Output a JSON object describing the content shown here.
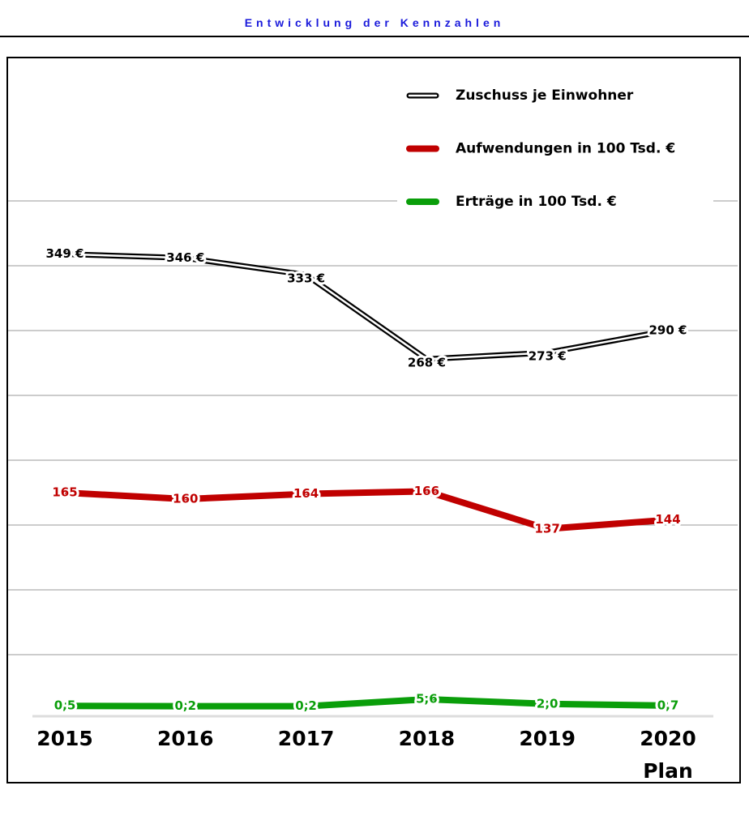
{
  "chart_data": {
    "type": "line",
    "title": "Entwicklung der Kennzahlen",
    "categories": [
      "2015",
      "2016",
      "2017",
      "2018",
      "2019",
      "2020\nPlan"
    ],
    "ylim": [
      0,
      490
    ],
    "grid": true,
    "legend": "top-right",
    "series": [
      {
        "name": "Zuschuss je Einwohner",
        "color": "#000000",
        "values": [
          349,
          346,
          333,
          268,
          273,
          290
        ],
        "value_labels": [
          "349 €",
          "346 €",
          "333 €",
          "268 €",
          "273 €",
          "290 €"
        ]
      },
      {
        "name": "Aufwendungen in 100 Tsd. €",
        "color": "#c00000",
        "values": [
          165,
          160,
          164,
          166,
          137,
          144
        ]
      },
      {
        "name": "Erträge in 100 Tsd. €",
        "color": "#0a9e0a",
        "values": [
          0.5,
          0.2,
          0.2,
          5.6,
          2.0,
          0.7
        ],
        "value_labels": [
          "0,5",
          "0,2",
          "0,2",
          "5,6",
          "2,0",
          "0,7"
        ]
      }
    ]
  }
}
